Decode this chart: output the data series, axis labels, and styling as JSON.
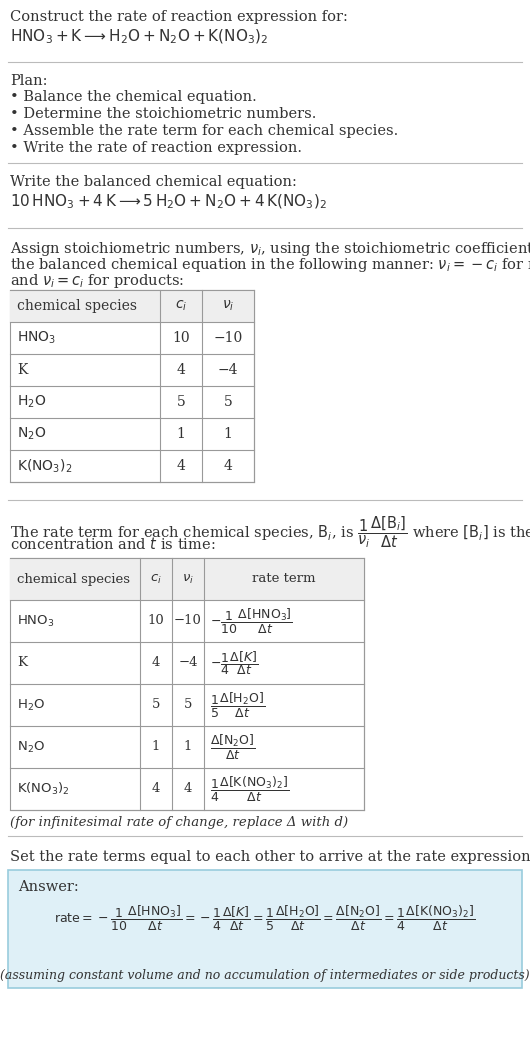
{
  "bg_color": "#ffffff",
  "text_color": "#333333",
  "title_line1": "Construct the rate of reaction expression for:",
  "title_line2": "$\\mathrm{HNO_3 + K \\longrightarrow H_2O + N_2O + K(NO_3)_2}$",
  "plan_header": "Plan:",
  "plan_bullets": [
    "• Balance the chemical equation.",
    "• Determine the stoichiometric numbers.",
    "• Assemble the rate term for each chemical species.",
    "• Write the rate of reaction expression."
  ],
  "balanced_header": "Write the balanced chemical equation:",
  "balanced_eq": "$\\mathrm{10\\, HNO_3 + 4\\, K \\longrightarrow 5\\, H_2O + N_2O + 4\\, K(NO_3)_2}$",
  "assign_text1": "Assign stoichiometric numbers, $\\nu_i$, using the stoichiometric coefficients, $c_i$, from",
  "assign_text2": "the balanced chemical equation in the following manner: $\\nu_i = -c_i$ for reactants",
  "assign_text3": "and $\\nu_i = c_i$ for products:",
  "table1_headers": [
    "chemical species",
    "$c_i$",
    "$\\nu_i$"
  ],
  "table1_rows": [
    [
      "$\\mathrm{HNO_3}$",
      "10",
      "−10"
    ],
    [
      "K",
      "4",
      "−4"
    ],
    [
      "$\\mathrm{H_2O}$",
      "5",
      "5"
    ],
    [
      "$\\mathrm{N_2O}$",
      "1",
      "1"
    ],
    [
      "$\\mathrm{K(NO_3)_2}$",
      "4",
      "4"
    ]
  ],
  "rate_text1": "The rate term for each chemical species, $\\mathrm{B}_i$, is $\\dfrac{1}{\\nu_i}\\dfrac{\\Delta[\\mathrm{B}_i]}{\\Delta t}$ where $[\\mathrm{B}_i]$ is the amount",
  "rate_text2": "concentration and $t$ is time:",
  "table2_headers": [
    "chemical species",
    "$c_i$",
    "$\\nu_i$",
    "rate term"
  ],
  "table2_rows": [
    [
      "$\\mathrm{HNO_3}$",
      "10",
      "−10",
      "$-\\dfrac{1}{10}\\dfrac{\\Delta[\\mathrm{HNO_3}]}{\\Delta t}$"
    ],
    [
      "K",
      "4",
      "−4",
      "$-\\dfrac{1}{4}\\dfrac{\\Delta[K]}{\\Delta t}$"
    ],
    [
      "$\\mathrm{H_2O}$",
      "5",
      "5",
      "$\\dfrac{1}{5}\\dfrac{\\Delta[\\mathrm{H_2O}]}{\\Delta t}$"
    ],
    [
      "$\\mathrm{N_2O}$",
      "1",
      "1",
      "$\\dfrac{\\Delta[\\mathrm{N_2O}]}{\\Delta t}$"
    ],
    [
      "$\\mathrm{K(NO_3)_2}$",
      "4",
      "4",
      "$\\dfrac{1}{4}\\dfrac{\\Delta[\\mathrm{K(NO_3)_2}]}{\\Delta t}$"
    ]
  ],
  "inf_note": "(for infinitesimal rate of change, replace Δ with d)",
  "set_equal_text": "Set the rate terms equal to each other to arrive at the rate expression:",
  "answer_label": "Answer:",
  "answer_eq": "$\\mathrm{rate} = -\\dfrac{1}{10}\\dfrac{\\Delta[\\mathrm{HNO_3}]}{\\Delta t} = -\\dfrac{1}{4}\\dfrac{\\Delta[K]}{\\Delta t} = \\dfrac{1}{5}\\dfrac{\\Delta[\\mathrm{H_2O}]}{\\Delta t} = \\dfrac{\\Delta[\\mathrm{N_2O}]}{\\Delta t} = \\dfrac{1}{4}\\dfrac{\\Delta[\\mathrm{K(NO_3)_2}]}{\\Delta t}$",
  "answer_note": "(assuming constant volume and no accumulation of intermediates or side products)",
  "divider_color": "#bbbbbb",
  "table_border_color": "#999999",
  "table_header_bg": "#eeeeee",
  "answer_box_bg": "#dff0f7",
  "answer_box_border": "#99ccdd"
}
